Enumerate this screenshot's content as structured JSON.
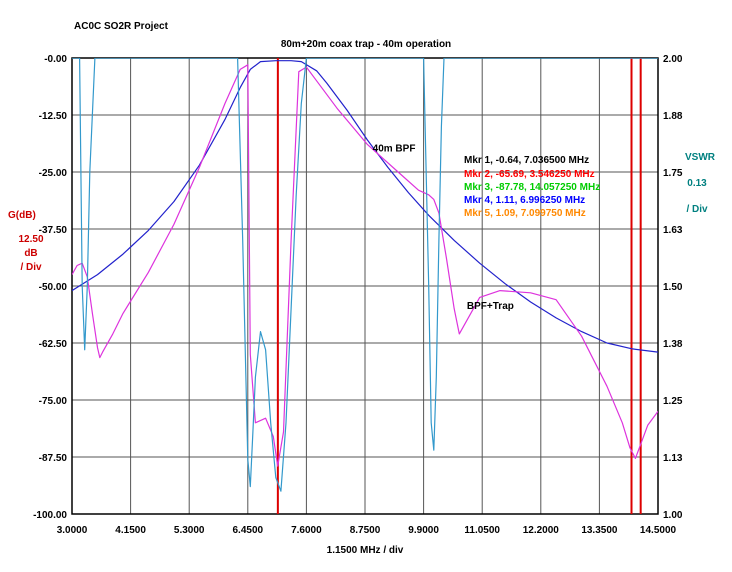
{
  "project_title": "AC0C SO2R Project",
  "chart_data": {
    "type": "line",
    "title": "80m+20m coax trap - 40m operation",
    "xlabel": "1.1500 MHz / div",
    "x_ticks": [
      "3.0000",
      "4.1500",
      "5.3000",
      "6.4500",
      "7.6000",
      "8.7500",
      "9.9000",
      "11.0500",
      "12.2000",
      "13.3500",
      "14.5000"
    ],
    "xlim": [
      3.0,
      14.5
    ],
    "left_axis": {
      "label": "G(dB)",
      "scale_lines": [
        "12.50",
        "dB",
        "/ Div"
      ],
      "ticks": [
        "-0.00",
        "-12.50",
        "-25.00",
        "-37.50",
        "-50.00",
        "-62.50",
        "-75.00",
        "-87.50",
        "-100.00"
      ],
      "ylim": [
        -100,
        0
      ],
      "color": "#cc0000"
    },
    "right_axis": {
      "label": "VSWR",
      "scale_lines": [
        "0.13",
        "/ Div"
      ],
      "ticks": [
        "2.00",
        "1.88",
        "1.75",
        "1.63",
        "1.50",
        "1.38",
        "1.25",
        "1.13",
        "1.00"
      ],
      "ylim": [
        1.0,
        2.0
      ],
      "color": "#008080"
    },
    "grid": true,
    "annotations": [
      {
        "text": "40m BPF",
        "x": 8.9,
        "y": -20.5
      },
      {
        "text": "BPF+Trap",
        "x": 10.75,
        "y": -55.0
      }
    ],
    "markers_legend": [
      {
        "text": "Mkr 1, -0.64, 7.036500 MHz",
        "color": "#000000"
      },
      {
        "text": "Mkr 2, -65.69, 3.546250 MHz",
        "color": "#ff0000"
      },
      {
        "text": "Mkr 3, -87.78, 14.057250 MHz",
        "color": "#00cc00"
      },
      {
        "text": "Mkr 4, 1.11, 6.996250 MHz",
        "color": "#0000ff"
      },
      {
        "text": "Mkr 5, 1.09, 7.099750 MHz",
        "color": "#ff8800"
      }
    ],
    "vertical_marker_lines_mhz": [
      7.04,
      13.98,
      14.16
    ],
    "marker_line_color": "#dd0000",
    "series": [
      {
        "color": "#2222cc",
        "axis": "left",
        "x": [
          3.0,
          3.5,
          4.0,
          4.5,
          5.0,
          5.5,
          6.0,
          6.3,
          6.5,
          6.7,
          7.0,
          7.3,
          7.5,
          7.8,
          8.0,
          8.4,
          8.8,
          9.2,
          9.6,
          10.0,
          10.5,
          11.0,
          11.5,
          12.0,
          12.5,
          13.0,
          13.5,
          14.0,
          14.5
        ],
        "y": [
          -51.0,
          -47.5,
          -43.0,
          -37.8,
          -31.5,
          -23.5,
          -13.5,
          -6.5,
          -2.5,
          -0.8,
          -0.6,
          -0.6,
          -0.8,
          -2.8,
          -5.5,
          -11.5,
          -18.0,
          -24.0,
          -29.5,
          -34.5,
          -40.0,
          -45.0,
          -49.5,
          -53.5,
          -57.0,
          -60.0,
          -62.5,
          -63.8,
          -64.5
        ]
      },
      {
        "color": "#dd33dd",
        "axis": "left",
        "x": [
          3.0,
          3.1,
          3.2,
          3.3,
          3.4,
          3.5,
          3.546,
          3.6,
          3.8,
          4.0,
          4.5,
          5.0,
          5.5,
          6.0,
          6.3,
          6.45,
          6.5,
          6.6,
          6.8,
          6.95,
          7.036,
          7.15,
          7.3,
          7.45,
          7.6,
          7.8,
          8.2,
          8.8,
          9.4,
          9.8,
          10.0,
          10.1,
          10.2,
          10.35,
          10.5,
          10.6,
          10.7,
          11.0,
          11.4,
          12.0,
          12.5,
          13.0,
          13.5,
          13.8,
          13.95,
          14.057,
          14.15,
          14.3,
          14.5
        ],
        "y": [
          -47.5,
          -45.5,
          -45.0,
          -48.0,
          -56.0,
          -63.5,
          -65.7,
          -64.5,
          -60.5,
          -56.0,
          -47.0,
          -36.5,
          -24.0,
          -10.0,
          -2.5,
          -1.5,
          -65.0,
          -80.0,
          -79.0,
          -83.0,
          -89.5,
          -82.0,
          -40.0,
          -3.0,
          -2.0,
          -5.0,
          -11.0,
          -19.0,
          -25.0,
          -29.0,
          -30.0,
          -31.0,
          -34.0,
          -44.0,
          -55.0,
          -60.5,
          -58.5,
          -52.5,
          -51.0,
          -51.5,
          -53.0,
          -61.0,
          -72.0,
          -80.0,
          -85.5,
          -87.8,
          -85.0,
          -80.5,
          -77.5
        ]
      },
      {
        "color": "#3399cc",
        "axis": "right",
        "x": [
          3.0,
          3.15,
          3.2,
          3.25,
          3.3,
          3.35,
          3.45,
          3.5,
          6.25,
          6.35,
          6.45,
          6.5,
          6.55,
          6.6,
          6.7,
          6.8,
          6.9,
          7.0,
          7.1,
          7.2,
          7.3,
          7.4,
          7.5,
          7.6,
          7.8,
          9.9,
          10.0,
          10.05,
          10.1,
          10.15,
          10.2,
          10.25,
          10.3,
          10.4,
          14.5
        ],
        "y": [
          2.0,
          2.0,
          1.5,
          1.36,
          1.5,
          1.75,
          2.0,
          2.0,
          2.0,
          1.6,
          1.12,
          1.06,
          1.18,
          1.3,
          1.4,
          1.36,
          1.2,
          1.08,
          1.05,
          1.2,
          1.45,
          1.7,
          1.9,
          2.0,
          2.0,
          2.0,
          1.5,
          1.2,
          1.14,
          1.3,
          1.6,
          1.85,
          2.0,
          2.0,
          2.0
        ]
      }
    ]
  }
}
